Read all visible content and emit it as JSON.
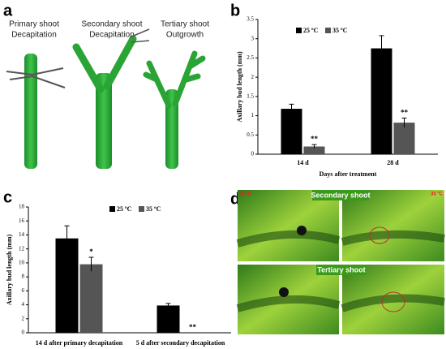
{
  "panel_a": {
    "label": "a",
    "captions": [
      [
        "Primary shoot",
        "Decapitation"
      ],
      [
        "Secondary shoot",
        "Decapitation"
      ],
      [
        "Tertiary shoot",
        "Outgrowth"
      ]
    ]
  },
  "chart_data": [
    {
      "type": "bar",
      "label": "b",
      "ylabel": "Axillary bud length (mm)",
      "xlabel": "Days after treatment",
      "categories": [
        "14 d",
        "28 d"
      ],
      "series": [
        {
          "name": "25 ºC",
          "color": "#000000",
          "values": [
            1.18,
            2.75
          ],
          "errors": [
            0.12,
            0.33
          ]
        },
        {
          "name": "35 ºC",
          "color": "#555555",
          "values": [
            0.2,
            0.82
          ],
          "errors": [
            0.05,
            0.12
          ],
          "significance": [
            "**",
            "**"
          ]
        }
      ],
      "ylim": [
        0,
        3.5
      ],
      "yticks": [
        0,
        0.5,
        1,
        1.5,
        2,
        2.5,
        3,
        3.5
      ]
    },
    {
      "type": "bar",
      "label": "c",
      "ylabel": "Axillary bud length (mm)",
      "categories": [
        "14 d after primary decapitation",
        "5 d after secondary decapitation"
      ],
      "series": [
        {
          "name": "25 ºC",
          "color": "#000000",
          "values": [
            13.5,
            3.9
          ],
          "errors": [
            1.8,
            0.3
          ]
        },
        {
          "name": "35 ºC",
          "color": "#555555",
          "values": [
            9.8,
            0
          ],
          "errors": [
            1.0,
            null
          ],
          "significance": [
            "*",
            "**"
          ]
        }
      ],
      "ylim": [
        0,
        18
      ],
      "yticks": [
        0,
        2,
        4,
        6,
        8,
        10,
        12,
        14,
        16,
        18
      ]
    }
  ],
  "panel_d": {
    "label": "d",
    "titles": [
      "Secondary shoot",
      "Tertiary shoot"
    ],
    "temperatures": [
      "25 ºC",
      "35 ºC"
    ]
  }
}
